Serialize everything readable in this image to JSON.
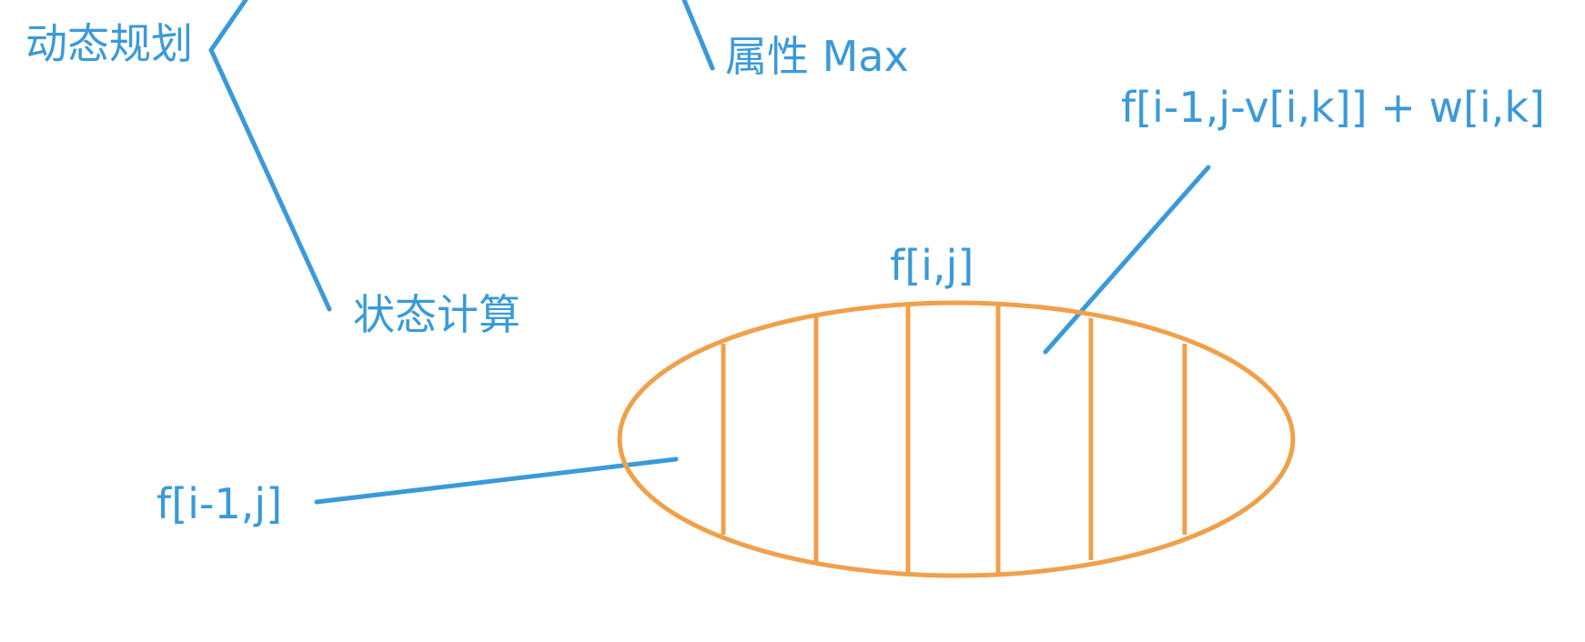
{
  "colors": {
    "annotation": "#3a9ad9",
    "ellipse": "#f0a04b"
  },
  "labels": {
    "dp": "动态规划",
    "attribute": "属性 Max",
    "state_calc": "状态计算",
    "f_ij": "f[i,j]",
    "f_prev": "f[i-1,j]",
    "f_transition": "f[i-1,j-v[i,k]] + w[i,k]"
  },
  "ellipse": {
    "partitions": 7
  }
}
